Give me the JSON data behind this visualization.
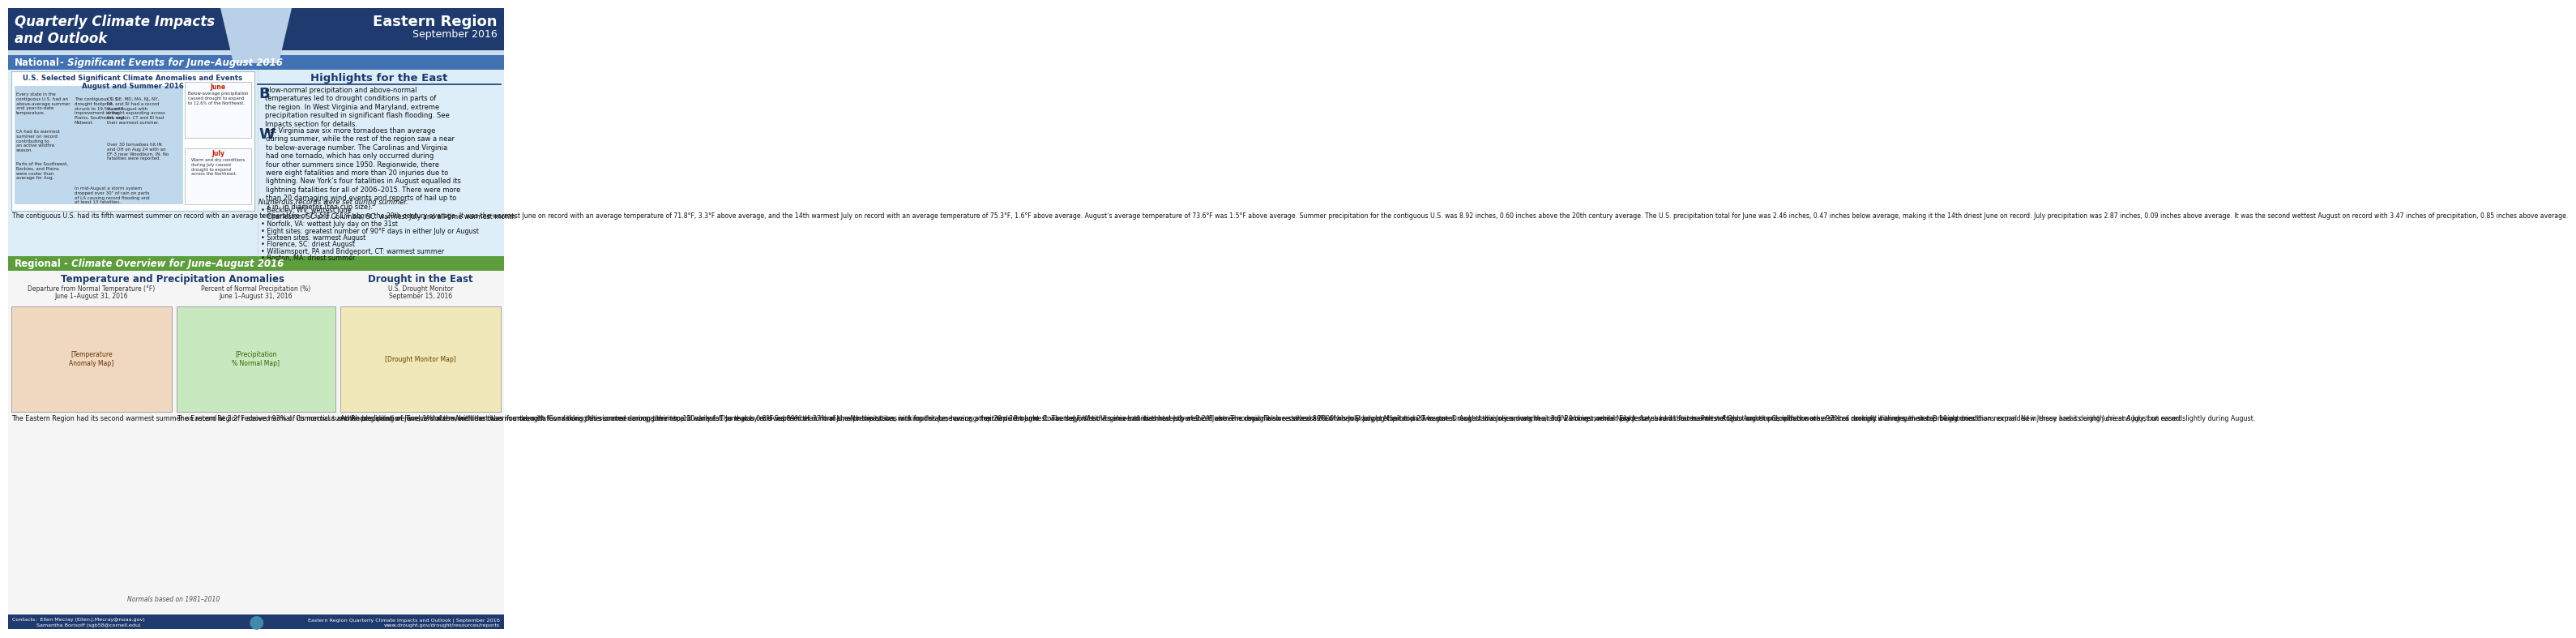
{
  "title_left": "Quarterly Climate Impacts\nand Outlook",
  "title_right": "Eastern Region",
  "subtitle_right": "September 2016",
  "header_bg": "#1e3a6e",
  "header_light_bg": "#ccdded",
  "national_bar_text": "National",
  "national_bar_text2": " - Significant Events for June–August 2016",
  "national_bar_bg": "#4272b4",
  "regional_bar_text": "Regional",
  "regional_bar_text2": " - Climate Overview for June–August 2016",
  "regional_bar_bg": "#5c9e3c",
  "highlights_title": "Highlights for the East",
  "box_title_line1": "U.S. Selected Significant Climate Anomalies and Events",
  "box_title_line2": "August and Summer 2016",
  "national_body_text": "The contiguous U.S. had its fifth warmest summer on record with an average temperature of 73.5°F, 2.1°F above the 20th century average. It was the warmest June on record with an average temperature of 71.8°F, 3.3°F above average, and the 14th warmest July on record with an average temperature of 75.3°F, 1.6°F above average. August’s average temperature of 73.6°F was 1.5°F above average. Summer precipitation for the contiguous U.S. was 8.92 inches, 0.60 inches above the 20th century average. The U.S. precipitation total for June was 2.46 inches, 0.47 inches below average, making it the 14th driest June on record. July precipitation was 2.87 inches, 0.09 inches above average. It was the second wettest August on record with 3.47 inches of precipitation, 0.85 inches above average.",
  "temp_precip_title": "Temperature and Precipitation Anomalies",
  "temp_subtitle_l1": "Departure from Normal Temperature (°F)",
  "temp_subtitle_l2": "June 1–August 31, 2016",
  "precip_subtitle_l1": "Percent of Normal Precipitation (%)",
  "precip_subtitle_l2": "June 1–August 31, 2016",
  "drought_title": "Drought in the East",
  "drought_subtitle_l1": "U.S. Drought Monitor",
  "drought_subtitle_l2": "September 15, 2016",
  "temp_body": "The Eastern Region had its second warmest summer on record at 2.2°F above normal. Connecticut and Rhode Island were record warm, with the other fourteen states ranking this summer among their top 15 warmest. June was 0.8°F warmer than normal, with two states ranking this June among their top 20 warmest. The region had its eleventh warmest July at 2.2°F above normal. Twelve states ranked this July among their top 20 warmest. August was record warm at 3.6°F above normal. Eight states had their warmest August on record, with the other states ranking it among their top 10 warmest.",
  "precip_body": "The Eastern Region received 93% of its normal summer precipitation. Twelve states were drier than normal, with four ranking this summer among their top 20 driest. The region received 89% of normal June precipitation, with four states having a top 20 driest June. Conversely, West Virginia had its thirteenth wettest June. The region also received 89% of normal July precipitation. Two states ranked this July among their top 20 driest, while New Jersey had its fourteenth wettest. August precipitation was 97% of normal, with eleven states being drier than normal. New Jersey had its eighth driest August on record.",
  "drought_body": "At the beginning of June, 1% of the Northeast was in a drought. Conditions deteriorated during summer and early fall so that by mid-September 37% of the Northeast was in a moderate, severe, or extreme drought. It was the first time some counties had experienced extreme drought since at least 2000 when Drought Monitor data began. Drought advisories, watches, and warnings were in place for several states. Parts of Ohio and the Carolinas were also in a drought during summer. Drought conditions expanded in these areas during June and July, but eased slightly during August.",
  "footnote_left_l1": "Contacts:  Ellen Mecray (Ellen.J.Mecray@noaa.gov)",
  "footnote_left_l2": "               Samantha Borisoff (sgb58@cornell.edu)",
  "footnote_right_l1": "Eastern Region Quarterly Climate Impacts and Outlook | September 2016",
  "footnote_right_l2": "www.drought.gov/drought/resources/reports",
  "normals_note": "Normals based on 1981–2010",
  "bg_color": "#ffffff",
  "section_bg": "#ddeef8",
  "regional_bg": "#f2f2f2",
  "bullet_texts": [
    "Every state in the\ncontiguous U.S. had an\nabove-average summer\nand year-to-date\ntemperature.",
    "CA had its warmest\nsummer on record\ncontributing to\nan active wildfire\nseason.",
    "Parts of the Southwest,\nRockies, and Plains\nwere cooler than\naverage for Aug.",
    "The contiguous U.S.\ndrought footprint\nshrunk to 19.5%, with\nimprovement in the\nPlains, Southeast, and\nMidwest.",
    "CT, DE, MD, MA, NJ, NY,\nPA, and RI had a record\nwarm August with\ndrought expanding across\nthe region. CT and RI had\ntheir warmest summer.",
    "Over 30 tornadoes hit IN\nand OH on Aug 24 with an\nEF-3 near Woodburn, IN. No\nfatalities were reported.",
    "In mid-August a storm system\ndropped over 30\" of rain on parts\nof LA causing record flooding and\nat least 13 fatalities."
  ],
  "june_text": "Below-average precipitation\ncaused drought to expand\nto 12.6% of the Northeast.",
  "july_text": "Warm and dry conditions\nduring July caused\ndrought to expand\nacross the Northeast.",
  "highlights_p1_big": "B",
  "highlights_p1_rest": "elow-normal precipitation and above-normal temperatures led to drought conditions in parts of the region. In West Virginia and Maryland, extreme precipitation resulted in significant flash flooding. See Impacts section for details.",
  "highlights_p2_big": "W",
  "highlights_p2_rest": "est Virginia saw six more tornadoes than average during summer, while the rest of the region saw a near to below-average number. The Carolinas and Virginia had one tornado, which has only occurred during four other summers since 1950. Regionwide, there were eight fatalities and more than 20 injuries due to lightning. New York’s four fatalities in August equalled its lightning fatalities for all of 2006–2015. There were more than 20 damaging wind events and reports of hail up to 3 in. in diameter (tea cup size).",
  "records_intro": "Numerous records were set during summer.",
  "records": [
    "Beckley, WV: wettest June",
    "Charleston, SC and Columbia, SC: warmest July and all-time warmest month",
    "Norfolk, VA: wettest July day on the 31st",
    "Eight sites: greatest number of 90°F days in either July or August",
    "Sixteen sites: warmest August",
    "Florence, SC: driest August",
    "Williamsport, PA and Bridgeport, CT: warmest summer",
    "Boston, MA: driest summer"
  ]
}
